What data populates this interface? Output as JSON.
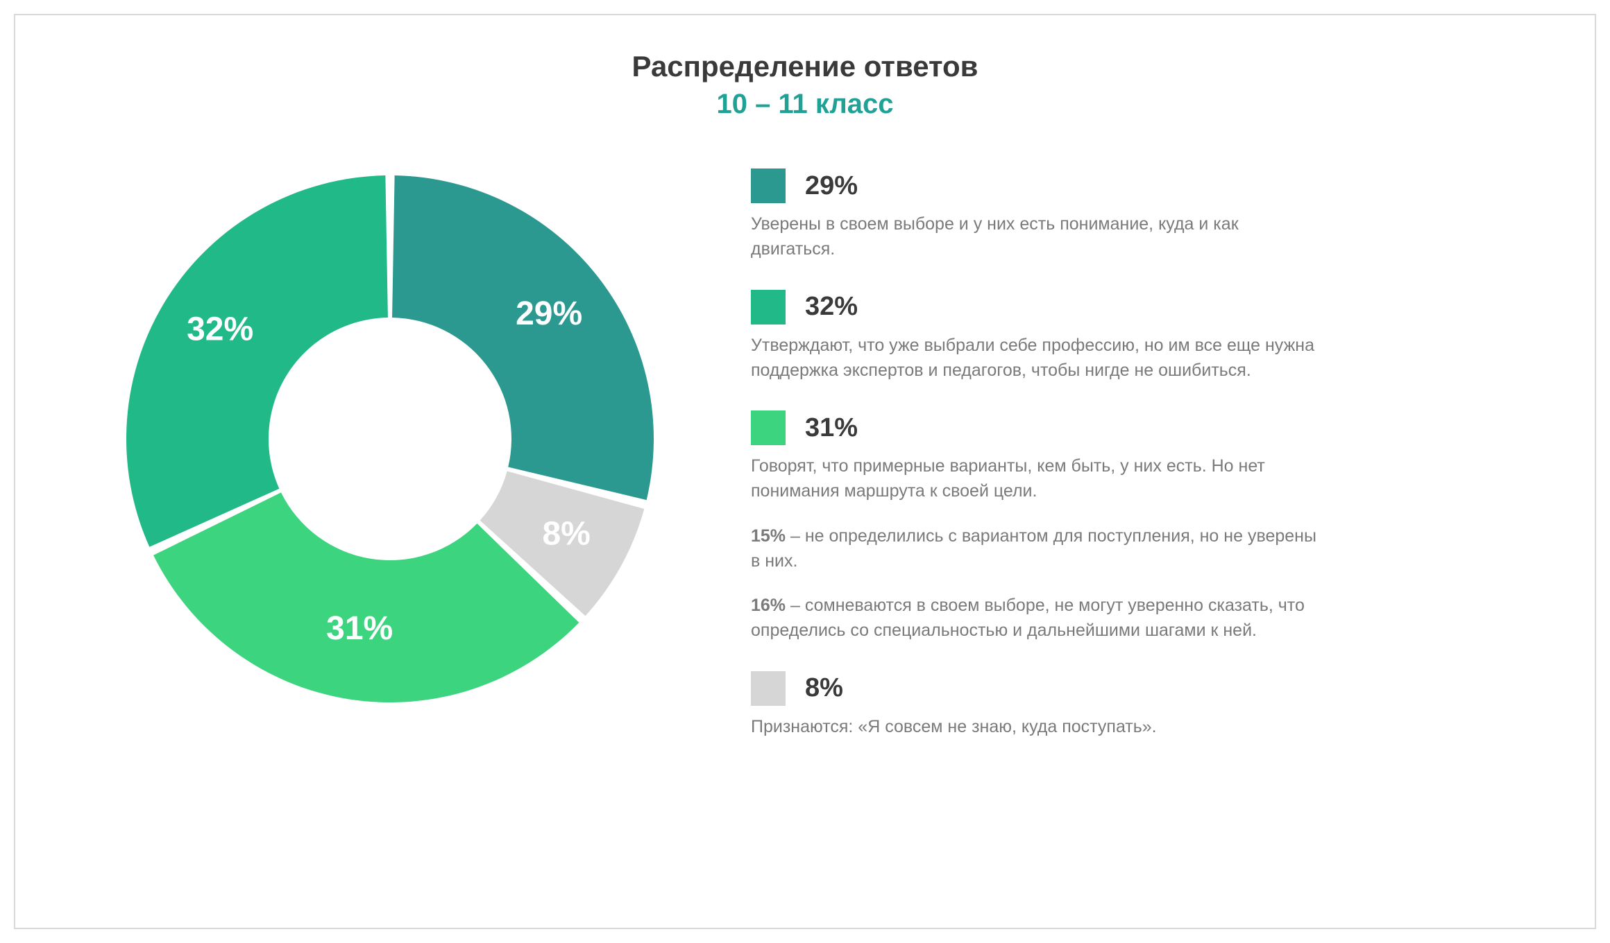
{
  "header": {
    "title": "Распределение ответов",
    "subtitle": "10 – 11 класс",
    "title_color": "#3a3a3a",
    "subtitle_color": "#1fa195",
    "title_fontsize": 42,
    "subtitle_fontsize": 40
  },
  "chart": {
    "type": "donut",
    "outer_radius": 380,
    "inner_radius": 175,
    "gap_deg": 2,
    "start_angle_deg": 0,
    "label_fontsize": 48,
    "label_color": "#ffffff",
    "background_color": "#ffffff",
    "slices": [
      {
        "value": 29,
        "label": "29%",
        "color": "#2b9990",
        "label_r": 290,
        "label_angle_offset": 0
      },
      {
        "value": 8,
        "label": "8%",
        "color": "#d6d6d6",
        "label_r": 290,
        "label_angle_offset": 0
      },
      {
        "value": 31,
        "label": "31%",
        "color": "#3dd47f",
        "label_r": 280,
        "label_angle_offset": 0
      },
      {
        "value": 32,
        "label": "32%",
        "color": "#21b987",
        "label_r": 290,
        "label_angle_offset": 0
      }
    ]
  },
  "legend": {
    "title_fontsize": 38,
    "desc_fontsize": 25,
    "desc_color": "#7a7a7a",
    "swatch_size": 50,
    "items": [
      {
        "percent": "29%",
        "swatch_color": "#2b9990",
        "desc": "Уверены в своем выборе и у них есть понимание, куда и как двигаться.",
        "subnotes": []
      },
      {
        "percent": "32%",
        "swatch_color": "#21b987",
        "desc": "Утверждают, что уже выбрали себе профессию, но им все еще нужна поддержка экспертов и педагогов, чтобы нигде не ошибиться.",
        "subnotes": []
      },
      {
        "percent": "31%",
        "swatch_color": "#3dd47f",
        "desc": "Говорят, что примерные варианты, кем быть, у них есть. Но нет понимания маршрута к своей цели.",
        "subnotes": [
          {
            "bold": "15%",
            "text": " – не определились с вариантом для поступления, но не уверены в них."
          },
          {
            "bold": "16%",
            "text": " – сомневаются в своем выборе, не могут уверенно сказать, что определись со специальностью и дальнейшими шагами к ней."
          }
        ]
      },
      {
        "percent": "8%",
        "swatch_color": "#d6d6d6",
        "desc": "Признаются: «Я совсем не знаю, куда поступать».",
        "subnotes": []
      }
    ]
  }
}
